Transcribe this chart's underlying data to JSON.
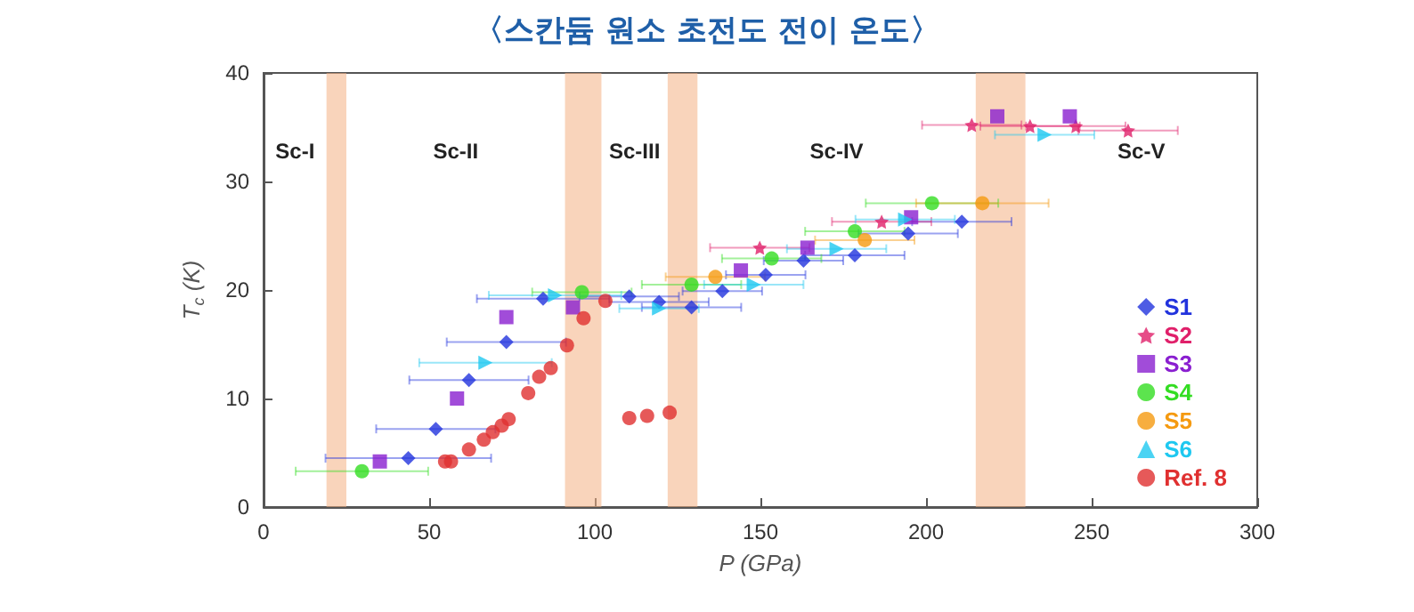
{
  "chart_data": {
    "type": "scatter",
    "title": "〈스칸듐 원소 초전도 전이 온도〉",
    "xlabel": "P (GPa)",
    "ylabel": "T$_{c}$ (K)",
    "xlim": [
      0,
      300
    ],
    "xticks": [
      0,
      50,
      100,
      150,
      200,
      250,
      300
    ],
    "ylim": [
      0,
      40
    ],
    "yticks": [
      0,
      10,
      20,
      30,
      40
    ],
    "grid": false,
    "legend": "bottom right",
    "bands": [
      {
        "axis": "x",
        "from": 19,
        "to": 25,
        "color": "#f4b183"
      },
      {
        "axis": "x",
        "from": 91,
        "to": 102,
        "color": "#f4b183"
      },
      {
        "axis": "x",
        "from": 122,
        "to": 131,
        "color": "#f4b183"
      },
      {
        "axis": "x",
        "from": 215,
        "to": 230,
        "color": "#f4b183"
      }
    ],
    "annotations": [
      "Sc-I",
      "Sc-II",
      "Sc-III",
      "Sc-IV",
      "Sc-V"
    ],
    "series": [
      {
        "name": "S1",
        "color": "#2233dd",
        "marker": "diamond",
        "x": [
          43.7,
          52,
          62,
          73.3,
          84.4,
          110.4,
          119.4,
          129.2,
          138.5,
          151.6,
          163,
          178.5,
          194.6,
          210.8
        ],
        "values": [
          4.5,
          7.2,
          11.7,
          15.2,
          19.2,
          19.4,
          18.9,
          18.4,
          19.9,
          21.4,
          22.7,
          23.2,
          25.2,
          26.3
        ],
        "xerrors": [
          25,
          18,
          18,
          18,
          20,
          15,
          15,
          15,
          12,
          12,
          12,
          15,
          15,
          15
        ]
      },
      {
        "name": "S2",
        "color": "#e0206a",
        "marker": "star",
        "x": [
          149.8,
          186.6,
          213.8,
          231.4,
          245.2,
          261
        ],
        "values": [
          23.9,
          26.3,
          35.2,
          35.1,
          35.1,
          34.7
        ],
        "xerrors": [
          15,
          15,
          15,
          15,
          15,
          15
        ]
      },
      {
        "name": "S3",
        "color": "#8a1fd0",
        "marker": "square",
        "x": [
          35.1,
          58.4,
          73.3,
          93.4,
          144.1,
          164.2,
          195.5,
          221.5,
          243.4
        ],
        "values": [
          4.2,
          10,
          17.5,
          18.4,
          21.8,
          23.9,
          26.7,
          36,
          36
        ]
      },
      {
        "name": "S4",
        "color": "#33dd22",
        "marker": "circle",
        "x": [
          29.7,
          96.1,
          129.2,
          153.4,
          178.5,
          201.8
        ],
        "values": [
          3.3,
          19.8,
          20.5,
          22.9,
          25.4,
          28
        ],
        "xerrors": [
          20,
          15,
          15,
          15,
          15,
          20
        ]
      },
      {
        "name": "S5",
        "color": "#f59a10",
        "marker": "circle",
        "x": [
          136.4,
          181.5,
          217
        ],
        "values": [
          21.2,
          24.6,
          28
        ],
        "xerrors": [
          15,
          15,
          20
        ]
      },
      {
        "name": "S6",
        "color": "#1ec8f0",
        "marker": "triangle",
        "x": [
          67,
          88,
          119.4,
          148,
          173,
          193.7,
          235.8
        ],
        "values": [
          13.3,
          19.5,
          18.3,
          20.5,
          23.8,
          26.5,
          34.3
        ],
        "xerrors": [
          20,
          20,
          12,
          15,
          15,
          15,
          15
        ]
      },
      {
        "name": "Ref. 8",
        "color": "#e03030",
        "marker": "circle",
        "x": [
          54.8,
          56.6,
          62,
          66.5,
          69.2,
          71.9,
          74,
          79.9,
          83.2,
          86.7,
          91.6,
          96.6,
          103.2,
          110.4,
          115.8,
          122.6
        ],
        "values": [
          4.2,
          4.2,
          5.3,
          6.2,
          6.9,
          7.5,
          8.1,
          10.5,
          12,
          12.8,
          14.9,
          17.4,
          19,
          8.2,
          8.4,
          8.7
        ]
      }
    ]
  }
}
